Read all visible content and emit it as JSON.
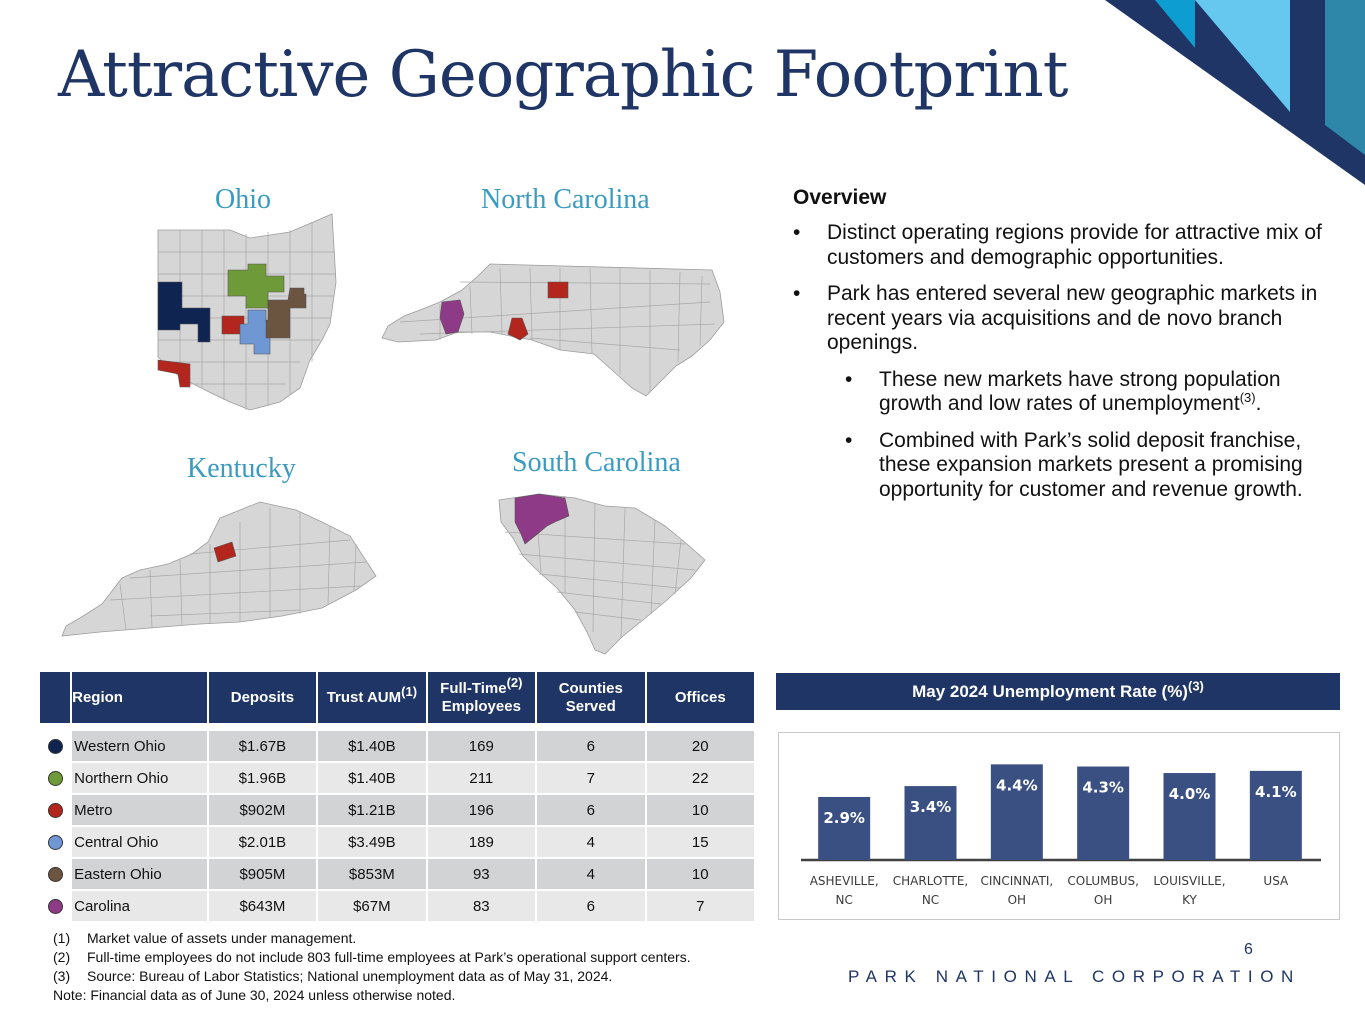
{
  "title": "Attractive Geographic Footprint",
  "maps": {
    "ohio": "Ohio",
    "north_carolina": "North Carolina",
    "kentucky": "Kentucky",
    "south_carolina": "South Carolina"
  },
  "colors": {
    "navy": "#1f3566",
    "western_ohio": "#0f2451",
    "northern_ohio": "#6e9a3a",
    "metro": "#b3261e",
    "central_ohio": "#6f97d4",
    "eastern_ohio": "#6b5440",
    "carolina": "#8e3a87",
    "map_gray": "#d6d6d6",
    "bar": "#3a5082"
  },
  "overview": {
    "title": "Overview",
    "bullet1": "Distinct operating regions provide for attractive mix of customers and demographic opportunities.",
    "bullet2": "Park has entered several new geographic markets in recent years via acquisitions and de novo branch openings.",
    "sub1_text": "These new markets have strong population growth and low rates of unemployment",
    "sub1_sup": "(3)",
    "sub1_end": ".",
    "sub2": "Combined with Park’s solid deposit franchise, these expansion markets present a promising opportunity for customer and revenue growth."
  },
  "table": {
    "headers": {
      "region": "Region",
      "deposits": "Deposits",
      "trust_aum": "Trust AUM",
      "trust_aum_sup": "(1)",
      "fte_line1": "Full-Time",
      "fte_sup": "(2)",
      "fte_line2": "Employees",
      "counties_line1": "Counties",
      "counties_line2": "Served",
      "offices": "Offices"
    },
    "rows": [
      {
        "region": "Western Ohio",
        "deposits": "$1.67B",
        "trust_aum": "$1.40B",
        "fte": "169",
        "counties": "6",
        "offices": "20",
        "color": "#0f2451"
      },
      {
        "region": "Northern Ohio",
        "deposits": "$1.96B",
        "trust_aum": "$1.40B",
        "fte": "211",
        "counties": "7",
        "offices": "22",
        "color": "#6e9a3a"
      },
      {
        "region": "Metro",
        "deposits": "$902M",
        "trust_aum": "$1.21B",
        "fte": "196",
        "counties": "6",
        "offices": "10",
        "color": "#b3261e"
      },
      {
        "region": "Central Ohio",
        "deposits": "$2.01B",
        "trust_aum": "$3.49B",
        "fte": "189",
        "counties": "4",
        "offices": "15",
        "color": "#6f97d4"
      },
      {
        "region": "Eastern Ohio",
        "deposits": "$905M",
        "trust_aum": "$853M",
        "fte": "93",
        "counties": "4",
        "offices": "10",
        "color": "#6b5440"
      },
      {
        "region": "Carolina",
        "deposits": "$643M",
        "trust_aum": "$67M",
        "fte": "83",
        "counties": "6",
        "offices": "7",
        "color": "#8e3a87"
      }
    ]
  },
  "chart_header": {
    "text": "May 2024 Unemployment Rate (%)",
    "sup": "(3)"
  },
  "chart_data": {
    "type": "bar",
    "categories": [
      [
        "ASHEVILLE,",
        "NC"
      ],
      [
        "CHARLOTTE,",
        "NC"
      ],
      [
        "CINCINNATI,",
        "OH"
      ],
      [
        "COLUMBUS,",
        "OH"
      ],
      [
        "LOUISVILLE,",
        "KY"
      ],
      [
        "USA"
      ]
    ],
    "values": [
      2.9,
      3.4,
      4.4,
      4.3,
      4.0,
      4.1
    ],
    "labels": [
      "2.9%",
      "3.4%",
      "4.4%",
      "4.3%",
      "4.0%",
      "4.1%"
    ],
    "title": "May 2024 Unemployment Rate (%)",
    "ylim": [
      0,
      4.6
    ],
    "grid": false
  },
  "footnotes": [
    {
      "num": "(1)",
      "text": "Market value of assets under management."
    },
    {
      "num": "(2)",
      "text": "Full-time employees do not include 803 full-time employees at Park’s operational support centers."
    },
    {
      "num": "(3)",
      "text": "Source: Bureau of Labor Statistics; National unemployment data as of May 31, 2024."
    }
  ],
  "note": "Note: Financial data as of June 30, 2024 unless otherwise noted.",
  "page_number": "6",
  "company": "PARK NATIONAL CORPORATION"
}
